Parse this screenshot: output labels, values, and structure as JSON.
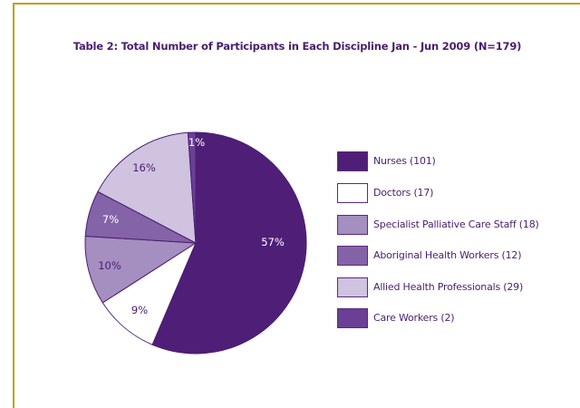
{
  "chart_data": {
    "type": "pie",
    "title": "Table 2: Total Number of Participants in Each Discipline Jan - Jun 2009 (N=179)",
    "series": [
      {
        "name": "Nurses (101)",
        "value": 101,
        "label": "57%",
        "color": "#4f1f78"
      },
      {
        "name": "Doctors (17)",
        "value": 17,
        "label": "9%",
        "color": "#ffffff"
      },
      {
        "name": "Specialist Palliative Care Staff (18)",
        "value": 18,
        "label": "10%",
        "color": "#a58ec0"
      },
      {
        "name": "Aboriginal Health Workers (12)",
        "value": 12,
        "label": "7%",
        "color": "#8463a8"
      },
      {
        "name": "Allied Health Professionals (29)",
        "value": 29,
        "label": "16%",
        "color": "#cfc3e0"
      },
      {
        "name": "Care Workers (2)",
        "value": 2,
        "label": "1%",
        "color": "#6a3f95"
      }
    ],
    "legend_position": "right"
  }
}
